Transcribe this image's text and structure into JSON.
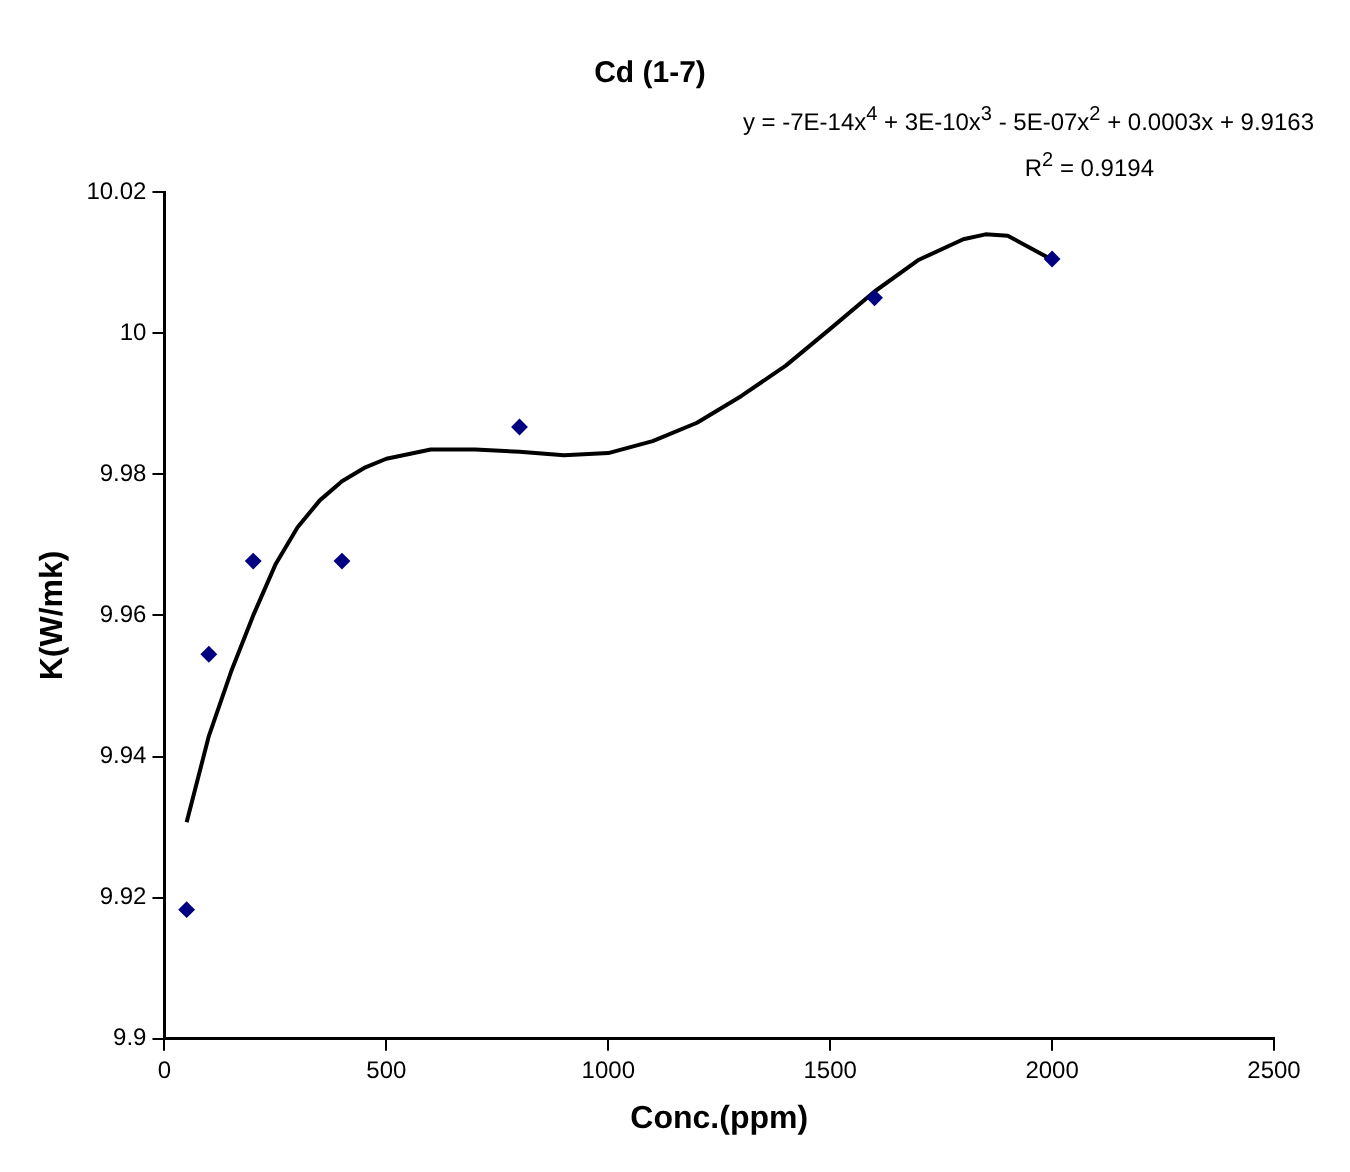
{
  "chart_data": {
    "type": "scatter",
    "title": "Cd (1-7)",
    "xlabel": "Conc.(ppm)",
    "ylabel": "K(W/mk)",
    "annotations": [
      "y = -7E-14x$^{4}$ + 3E-10x$^{3}$ - 5E-07x$^{2}$ + 0.0003x + 9.9163",
      "R$^{2}$ = 0.9194"
    ],
    "series": [
      {
        "color": "#000080",
        "x": [
          50,
          100,
          200,
          400,
          800,
          1600,
          2000
        ],
        "values": [
          9.9183,
          9.9545,
          9.9677,
          9.9677,
          9.9867,
          10.005,
          10.0105
        ]
      },
      {
        "type": "line",
        "marker": "none",
        "color": "#000000",
        "x": [
          50,
          100,
          150,
          200,
          250,
          300,
          350,
          400,
          450,
          500,
          600,
          700,
          800,
          900,
          1000,
          1100,
          1200,
          1300,
          1400,
          1500,
          1600,
          1700,
          1800,
          1850,
          1900,
          2000
        ],
        "values": [
          9.9307,
          9.9429,
          9.952,
          9.96,
          9.9672,
          9.9725,
          9.9763,
          9.979,
          9.9809,
          9.9822,
          9.9835,
          9.9835,
          9.9832,
          9.9827,
          9.983,
          9.9847,
          9.9873,
          9.9911,
          9.9954,
          10.0006,
          10.0059,
          10.0104,
          10.0133,
          10.014,
          10.0138,
          10.0104
        ]
      }
    ],
    "xlim": [
      0,
      2500
    ],
    "xticks": [
      0,
      500,
      1000,
      1500,
      2000,
      2500
    ],
    "ylim": [
      9.9,
      10.02
    ],
    "yticks": [
      9.9,
      9.92,
      9.94,
      9.96,
      9.98,
      10,
      10.02
    ],
    "grid": false,
    "legend": false,
    "marker": "diamond",
    "line_style": "solid"
  }
}
